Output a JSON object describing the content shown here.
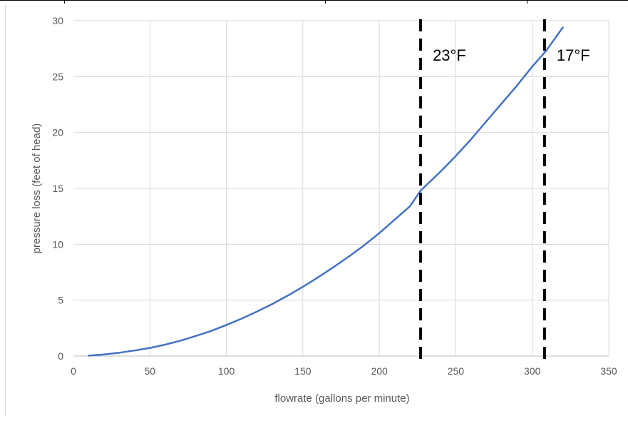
{
  "chart_data": {
    "type": "line",
    "xlabel": "flowrate (gallons per minute)",
    "ylabel": "pressure loss (feet of head)",
    "xlim": [
      0,
      350
    ],
    "ylim": [
      0,
      30
    ],
    "x_ticks": [
      "0",
      "50",
      "100",
      "150",
      "200",
      "250",
      "300",
      "350"
    ],
    "y_ticks": [
      "0",
      "5",
      "10",
      "15",
      "20",
      "25",
      "30"
    ],
    "grid": true,
    "series": [
      {
        "color": "#4472c4",
        "x": [
          10,
          20,
          30,
          40,
          50,
          60,
          70,
          80,
          90,
          100,
          110,
          120,
          130,
          140,
          150,
          160,
          170,
          180,
          190,
          200,
          210,
          220,
          227,
          240,
          250,
          260,
          270,
          280,
          290,
          300,
          309,
          320
        ],
        "y": [
          0.04,
          0.14,
          0.3,
          0.5,
          0.73,
          1.02,
          1.38,
          1.8,
          2.25,
          2.78,
          3.35,
          3.98,
          4.65,
          5.4,
          6.2,
          7.05,
          7.95,
          8.9,
          9.9,
          11.0,
          12.2,
          13.4,
          14.8,
          16.5,
          17.9,
          19.4,
          21.0,
          22.6,
          24.2,
          25.9,
          27.3,
          29.4
        ]
      }
    ],
    "vlines": [
      {
        "x": 227,
        "label": "23°F",
        "style": "dashed",
        "color": "#000000"
      },
      {
        "x": 308,
        "label": "17°F",
        "style": "dashed",
        "color": "#000000"
      }
    ]
  }
}
